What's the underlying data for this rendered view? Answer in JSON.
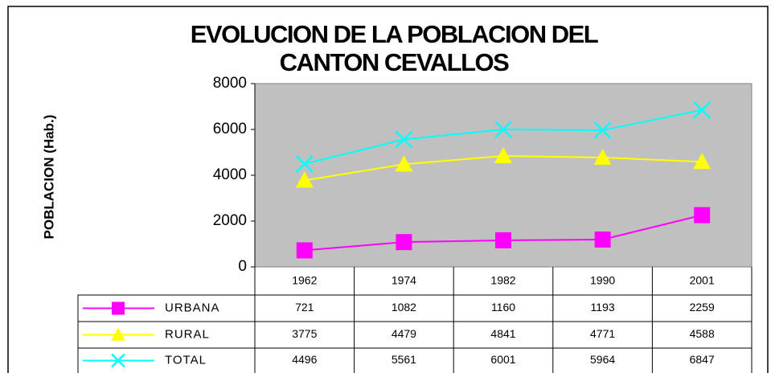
{
  "chart_data": {
    "type": "line",
    "title": [
      "EVOLUCION DE LA POBLACION DEL",
      "CANTON CEVALLOS"
    ],
    "y_label": "POBLACION (Hab.)",
    "categories": [
      "1962",
      "1974",
      "1982",
      "1990",
      "2001"
    ],
    "series": [
      {
        "name": "URBANA",
        "color": "#ff00ff",
        "marker": "square",
        "values": [
          721,
          1082,
          1160,
          1193,
          2259
        ]
      },
      {
        "name": "RURAL",
        "color": "#ffff00",
        "marker": "triangle",
        "values": [
          3775,
          4479,
          4841,
          4771,
          4588
        ]
      },
      {
        "name": "TOTAL",
        "color": "#00ffff",
        "marker": "x",
        "values": [
          4496,
          5561,
          6001,
          5964,
          6847
        ]
      }
    ],
    "ylim": [
      0,
      8000
    ],
    "yticks": [
      0,
      2000,
      4000,
      6000,
      8000
    ],
    "grid": false,
    "plot_background": "#c0c0c0"
  }
}
